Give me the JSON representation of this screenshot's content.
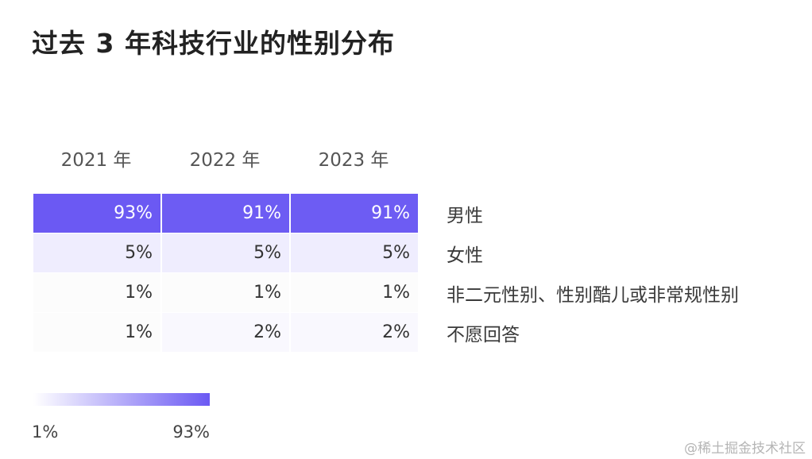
{
  "title": "过去 3 年科技行业的性别分布",
  "chart_data": {
    "type": "heatmap",
    "title": "过去 3 年科技行业的性别分布",
    "columns": [
      "2021 年",
      "2022 年",
      "2023 年"
    ],
    "rows": [
      "男性",
      "女性",
      "非二元性别、性别酷儿或非常规性别",
      "不愿回答"
    ],
    "values": [
      [
        93,
        91,
        91
      ],
      [
        5,
        5,
        5
      ],
      [
        1,
        1,
        1
      ],
      [
        1,
        2,
        2
      ]
    ],
    "value_suffix": "%",
    "color_scale": {
      "min": 1,
      "max": 93,
      "min_label": "1%",
      "max_label": "93%",
      "min_color": "#ffffff",
      "max_color": "#6b59f3"
    }
  },
  "watermark": "@稀土掘金技术社区"
}
